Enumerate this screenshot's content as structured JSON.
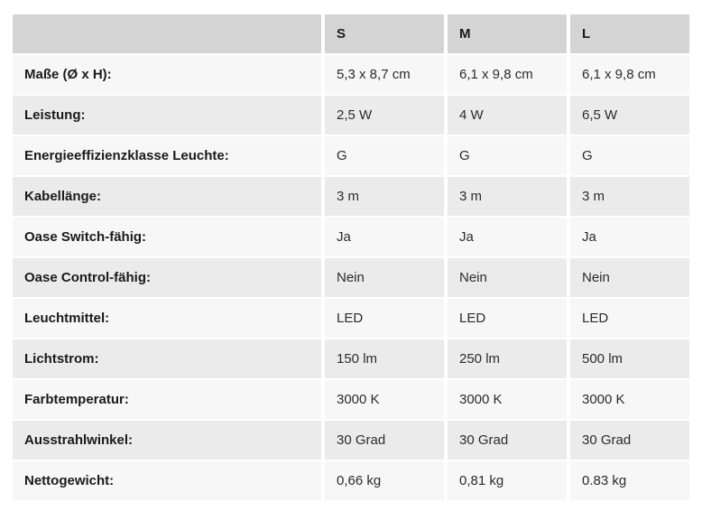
{
  "table": {
    "columns": [
      "",
      "S",
      "M",
      "L"
    ],
    "rows": [
      {
        "label": "Maße (Ø x H):",
        "values": [
          "5,3 x 8,7 cm",
          "6,1 x 9,8 cm",
          "6,1 x 9,8 cm"
        ]
      },
      {
        "label": "Leistung:",
        "values": [
          "2,5 W",
          "4 W",
          "6,5 W"
        ]
      },
      {
        "label": "Energieeffizienzklasse Leuchte:",
        "values": [
          "G",
          "G",
          "G"
        ]
      },
      {
        "label": "Kabellänge:",
        "values": [
          "3 m",
          "3 m",
          "3 m"
        ]
      },
      {
        "label": "Oase Switch-fähig:",
        "values": [
          "Ja",
          "Ja",
          "Ja"
        ]
      },
      {
        "label": "Oase Control-fähig:",
        "values": [
          "Nein",
          "Nein",
          "Nein"
        ]
      },
      {
        "label": "Leuchtmittel:",
        "values": [
          "LED",
          "LED",
          "LED"
        ]
      },
      {
        "label": "Lichtstrom:",
        "values": [
          "150 lm",
          "250 lm",
          "500 lm"
        ]
      },
      {
        "label": "Farbtemperatur:",
        "values": [
          "3000 K",
          "3000 K",
          "3000 K"
        ]
      },
      {
        "label": "Ausstrahlwinkel:",
        "values": [
          "30 Grad",
          "30 Grad",
          "30 Grad"
        ]
      },
      {
        "label": "Nettogewicht:",
        "values": [
          "0,66 kg",
          "0,81 kg",
          "0.83 kg"
        ]
      }
    ],
    "colors": {
      "header_bg": "#d4d4d4",
      "row_light_bg": "#f7f7f7",
      "row_dark_bg": "#ebebeb",
      "separator": "#ffffff",
      "label_text": "#1a1a1a",
      "value_text": "#2b2b2b"
    }
  }
}
